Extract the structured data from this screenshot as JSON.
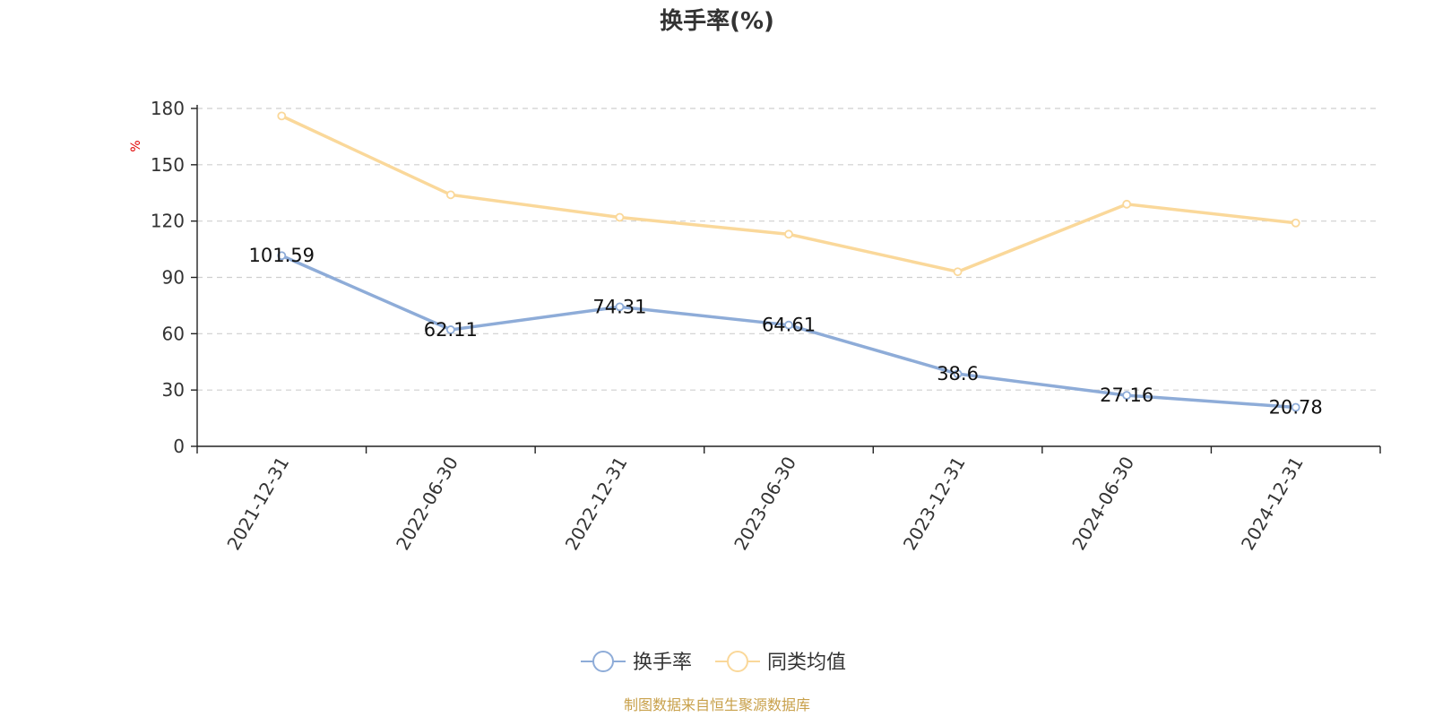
{
  "chart_data": {
    "type": "line",
    "title": "换手率(%)",
    "ylabel": "%",
    "xlabel": "",
    "ylim": [
      0,
      180
    ],
    "yticks": [
      0,
      30,
      60,
      90,
      120,
      150,
      180
    ],
    "grid": true,
    "legend_position": "bottom-center",
    "categories": [
      "2021-12-31",
      "2022-06-30",
      "2022-12-31",
      "2023-06-30",
      "2023-12-31",
      "2024-06-30",
      "2024-12-31"
    ],
    "series": [
      {
        "name": "换手率",
        "color": "#8eacd8",
        "values": [
          101.59,
          62.11,
          74.31,
          64.61,
          38.6,
          27.16,
          20.78
        ],
        "labels": [
          "101.59",
          "62.11",
          "74.31",
          "64.61",
          "38.6",
          "27.16",
          "20.78"
        ]
      },
      {
        "name": "同类均值",
        "color": "#fad89a",
        "values": [
          176,
          134,
          122,
          113,
          93,
          129,
          119
        ]
      }
    ],
    "source": "制图数据来自恒生聚源数据库"
  }
}
